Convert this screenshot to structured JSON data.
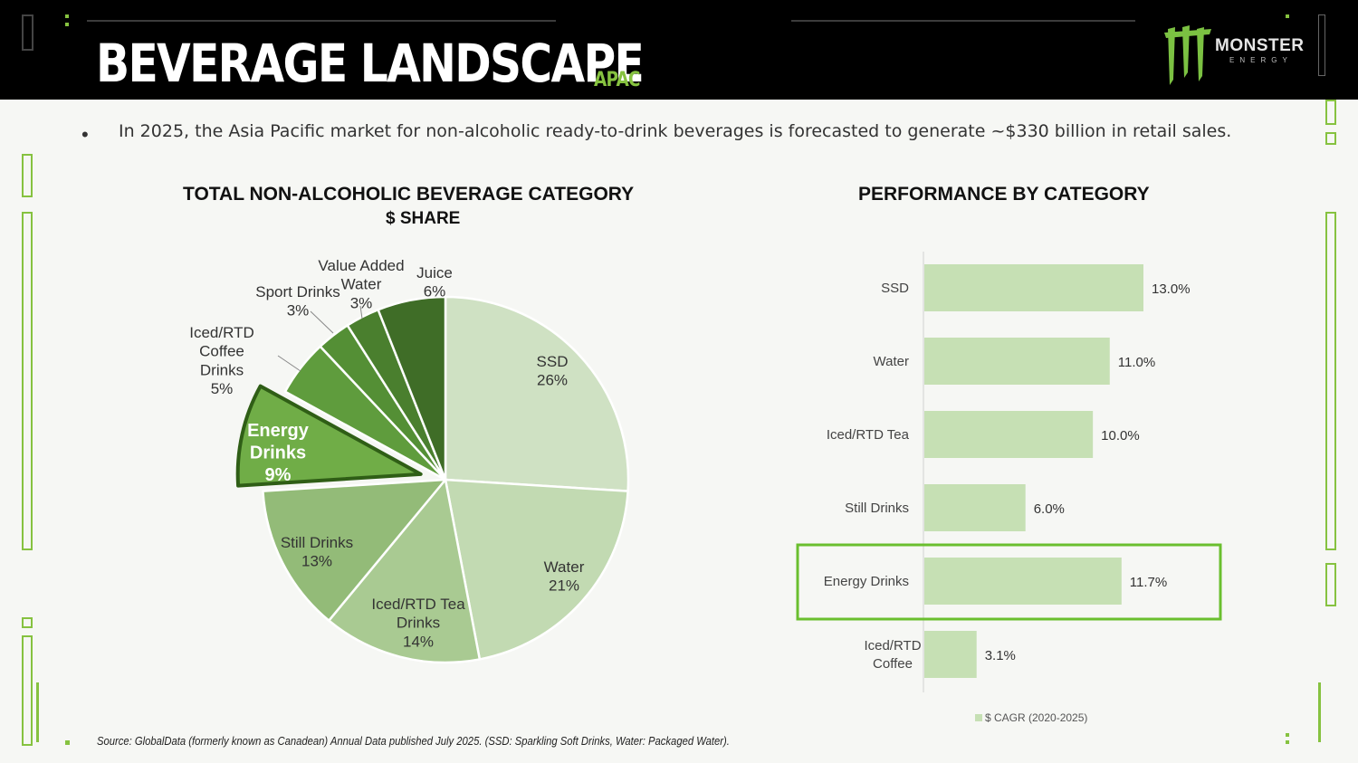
{
  "header": {
    "title": "BEVERAGE LANDSCAPE",
    "region_tag": "APAC",
    "logo_word": "MONSTER",
    "logo_sub": "ENERGY"
  },
  "bullet": "In 2025, the Asia Pacific market for non-alcoholic ready-to-drink beverages is forecasted to generate ~$330 billion in retail sales.",
  "left_chart_title": {
    "line1": "TOTAL NON-ALCOHOLIC BEVERAGE CATEGORY",
    "line2": "$ SHARE"
  },
  "right_chart_title": "PERFORMANCE BY CATEGORY",
  "source": "Source: GlobalData (formerly known as Canadean) Annual Data published July 2025. (SSD: Sparkling Soft Drinks, Water: Packaged Water).",
  "colors": {
    "accent": "#86c240",
    "bar_fill": "#c6e0b4",
    "highlight_border": "#6abf2e"
  },
  "chart_data": [
    {
      "type": "pie",
      "title": "TOTAL NON-ALCOHOLIC BEVERAGE CATEGORY $ SHARE",
      "slices": [
        {
          "label": "SSD",
          "value": 26,
          "display": "26%",
          "color": "#cfe1c3"
        },
        {
          "label": "Water",
          "value": 21,
          "display": "21%",
          "color": "#c2dab2"
        },
        {
          "label": "Iced/RTD Tea Drinks",
          "value": 14,
          "display": "14%",
          "color": "#a9ca92"
        },
        {
          "label": "Still Drinks",
          "value": 13,
          "display": "13%",
          "color": "#93bb78"
        },
        {
          "label": "Energy Drinks",
          "value": 9,
          "display": "9%",
          "color": "#70ad47",
          "exploded": true
        },
        {
          "label": "Iced/RTD Coffee Drinks",
          "value": 5,
          "display": "5%",
          "color": "#5f9c3d"
        },
        {
          "label": "Sport Drinks",
          "value": 3,
          "display": "3%",
          "color": "#548f35"
        },
        {
          "label": "Value Added Water",
          "value": 3,
          "display": "3%",
          "color": "#4a7f2e"
        },
        {
          "label": "Juice",
          "value": 6,
          "display": "6%",
          "color": "#3f6d27"
        }
      ]
    },
    {
      "type": "bar",
      "orientation": "horizontal",
      "title": "PERFORMANCE BY CATEGORY",
      "categories": [
        "SSD",
        "Water",
        "Iced/RTD Tea",
        "Still Drinks",
        "Energy Drinks",
        "Iced/RTD Coffee"
      ],
      "values": [
        13.0,
        11.0,
        10.0,
        6.0,
        11.7,
        3.1
      ],
      "value_labels": [
        "13.0%",
        "11.0%",
        "10.0%",
        "6.0%",
        "11.7%",
        "3.1%"
      ],
      "highlight": "Energy Drinks",
      "legend": "$ CAGR (2020-2025)",
      "xlim": [
        0,
        13.0
      ]
    }
  ]
}
